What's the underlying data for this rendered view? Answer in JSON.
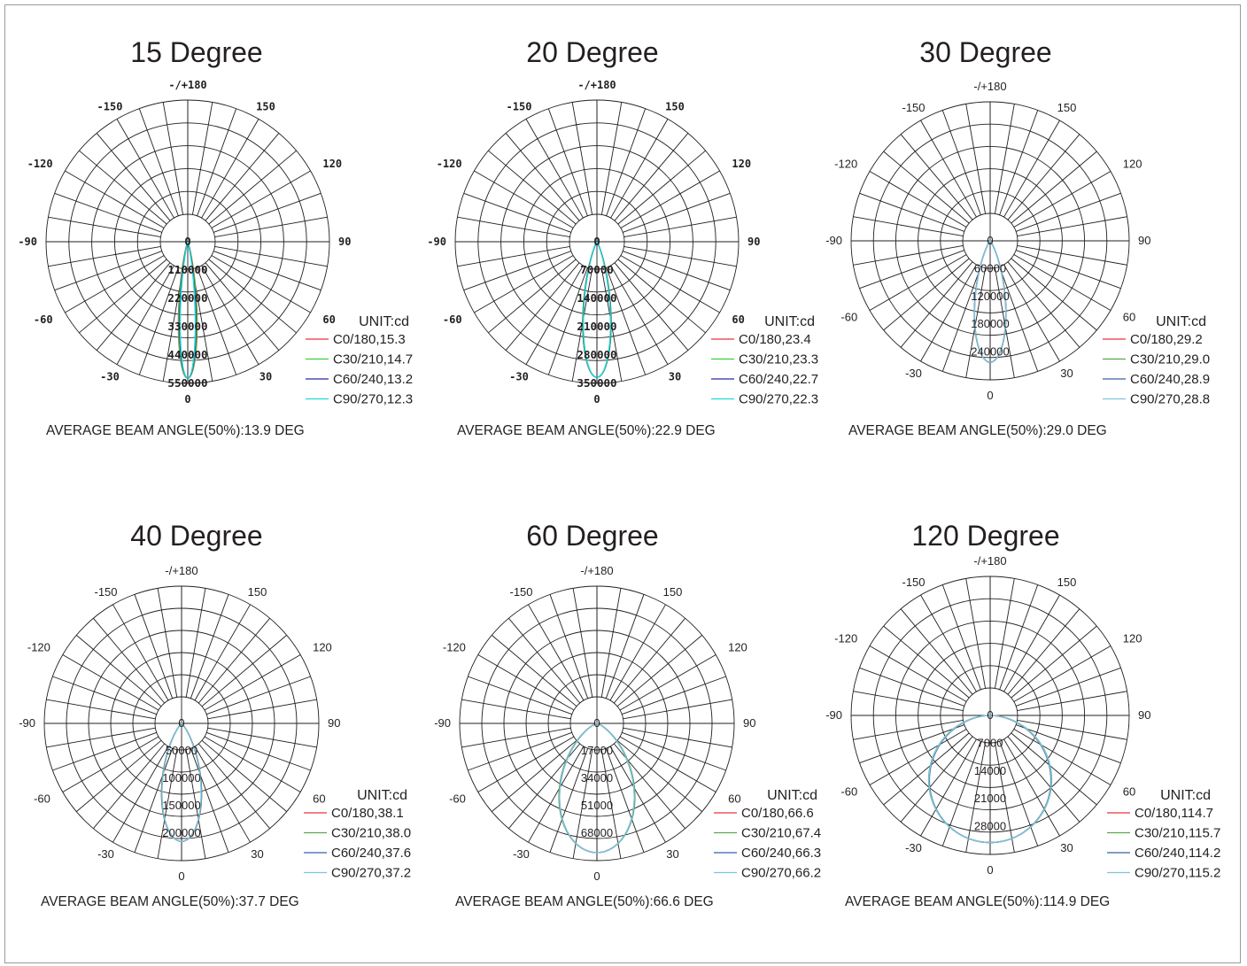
{
  "chart_data": [
    {
      "type": "polar",
      "title": "15 Degree",
      "unit_label": "UNIT:cd",
      "angle_labels": [
        "-/+180",
        "-150",
        "150",
        "-120",
        "120",
        "-90",
        "90",
        "-60",
        "60",
        "-30",
        "30",
        "0"
      ],
      "radial_labels": [
        "0",
        "110000",
        "220000",
        "330000",
        "440000",
        "550000"
      ],
      "rmax": 550000,
      "series": [
        {
          "name": "C0/180,15.3",
          "color": "#e8343a",
          "beam_angle": 15.3
        },
        {
          "name": "C30/210,14.7",
          "color": "#3ccf3c",
          "beam_angle": 14.7
        },
        {
          "name": "C60/240,13.2",
          "color": "#2b2ba8",
          "beam_angle": 13.2
        },
        {
          "name": "C90/270,12.3",
          "color": "#22d8d8",
          "beam_angle": 12.3
        }
      ],
      "peak_intensity": 530000,
      "average_beam_text": "AVERAGE BEAM ANGLE(50%):13.9 DEG"
    },
    {
      "type": "polar",
      "title": "20 Degree",
      "unit_label": "UNIT:cd",
      "angle_labels": [
        "-/+180",
        "-150",
        "150",
        "-120",
        "120",
        "-90",
        "90",
        "-60",
        "60",
        "-30",
        "30",
        "0"
      ],
      "radial_labels": [
        "0",
        "70000",
        "140000",
        "210000",
        "280000",
        "350000"
      ],
      "rmax": 350000,
      "series": [
        {
          "name": "C0/180,23.4",
          "color": "#e8343a",
          "beam_angle": 23.4
        },
        {
          "name": "C30/210,23.3",
          "color": "#3ccf3c",
          "beam_angle": 23.3
        },
        {
          "name": "C60/240,22.7",
          "color": "#2b2ba8",
          "beam_angle": 22.7
        },
        {
          "name": "C90/270,22.3",
          "color": "#22d8d8",
          "beam_angle": 22.3
        }
      ],
      "peak_intensity": 335000,
      "average_beam_text": "AVERAGE BEAM ANGLE(50%):22.9 DEG"
    },
    {
      "type": "polar",
      "title": "30 Degree",
      "unit_label": "UNIT:cd",
      "angle_labels": [
        "-/+180",
        "-150",
        "150",
        "-120",
        "120",
        "-90",
        "90",
        "-60",
        "60",
        "-30",
        "30",
        "0"
      ],
      "radial_labels": [
        "0",
        "60000",
        "120000",
        "180000",
        "240000"
      ],
      "rmax": 300000,
      "series": [
        {
          "name": "C0/180,29.2",
          "color": "#e8343a",
          "beam_angle": 29.2
        },
        {
          "name": "C30/210,29.0",
          "color": "#5aa84e",
          "beam_angle": 29.0
        },
        {
          "name": "C60/240,28.9",
          "color": "#3a5fa8",
          "beam_angle": 28.9
        },
        {
          "name": "C90/270,28.8",
          "color": "#7ec4dc",
          "beam_angle": 28.8
        }
      ],
      "peak_intensity": 262000,
      "average_beam_text": "AVERAGE BEAM ANGLE(50%):29.0 DEG"
    },
    {
      "type": "polar",
      "title": "40 Degree",
      "unit_label": "UNIT:cd",
      "angle_labels": [
        "-/+180",
        "-150",
        "150",
        "-120",
        "120",
        "-90",
        "90",
        "-60",
        "60",
        "-30",
        "30",
        "0"
      ],
      "radial_labels": [
        "0",
        "50000",
        "100000",
        "150000",
        "200000"
      ],
      "rmax": 250000,
      "series": [
        {
          "name": "C0/180,38.1",
          "color": "#e8343a",
          "beam_angle": 38.1
        },
        {
          "name": "C30/210,38.0",
          "color": "#5aa84e",
          "beam_angle": 38.0
        },
        {
          "name": "C60/240,37.6",
          "color": "#3a5fa8",
          "beam_angle": 37.6
        },
        {
          "name": "C90/270,37.2",
          "color": "#7ec4dc",
          "beam_angle": 37.2
        }
      ],
      "peak_intensity": 215000,
      "average_beam_text": "AVERAGE BEAM ANGLE(50%):37.7 DEG"
    },
    {
      "type": "polar",
      "title": "60 Degree",
      "unit_label": "UNIT:cd",
      "angle_labels": [
        "-/+180",
        "-150",
        "150",
        "-120",
        "120",
        "-90",
        "90",
        "-60",
        "60",
        "-30",
        "30",
        "0"
      ],
      "radial_labels": [
        "0",
        "17000",
        "34000",
        "51000",
        "68000"
      ],
      "rmax": 85000,
      "series": [
        {
          "name": "C0/180,66.6",
          "color": "#e8343a",
          "beam_angle": 66.6
        },
        {
          "name": "C30/210,67.4",
          "color": "#5aa84e",
          "beam_angle": 67.4
        },
        {
          "name": "C60/240,66.3",
          "color": "#3a5fa8",
          "beam_angle": 66.3
        },
        {
          "name": "C90/270,66.2",
          "color": "#7ec4dc",
          "beam_angle": 66.2
        }
      ],
      "peak_intensity": 80000,
      "average_beam_text": "AVERAGE BEAM ANGLE(50%):66.6 DEG"
    },
    {
      "type": "polar",
      "title": "120 Degree",
      "unit_label": "UNIT:cd",
      "angle_labels": [
        "-/+180",
        "-150",
        "150",
        "-120",
        "120",
        "-90",
        "90",
        "-60",
        "60",
        "-30",
        "30",
        "0"
      ],
      "radial_labels": [
        "0",
        "7000",
        "14000",
        "21000",
        "28000"
      ],
      "rmax": 35000,
      "series": [
        {
          "name": "C0/180,114.7",
          "color": "#e8343a",
          "beam_angle": 114.7
        },
        {
          "name": "C30/210,115.7",
          "color": "#5aa84e",
          "beam_angle": 115.7
        },
        {
          "name": "C60/240,114.2",
          "color": "#3a5fa8",
          "beam_angle": 114.2
        },
        {
          "name": "C90/270,115.2",
          "color": "#7ec4dc",
          "beam_angle": 115.2
        }
      ],
      "peak_intensity": 32000,
      "average_beam_text": "AVERAGE BEAM ANGLE(50%):114.9 DEG"
    }
  ]
}
